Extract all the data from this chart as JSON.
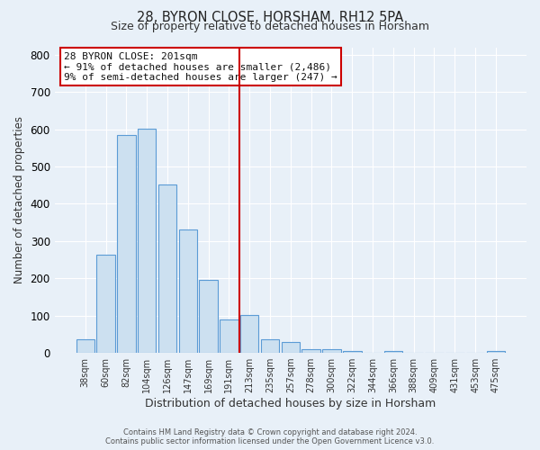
{
  "title": "28, BYRON CLOSE, HORSHAM, RH12 5PA",
  "subtitle": "Size of property relative to detached houses in Horsham",
  "xlabel": "Distribution of detached houses by size in Horsham",
  "ylabel": "Number of detached properties",
  "bar_labels": [
    "38sqm",
    "60sqm",
    "82sqm",
    "104sqm",
    "126sqm",
    "147sqm",
    "169sqm",
    "191sqm",
    "213sqm",
    "235sqm",
    "257sqm",
    "278sqm",
    "300sqm",
    "322sqm",
    "344sqm",
    "366sqm",
    "388sqm",
    "409sqm",
    "431sqm",
    "453sqm",
    "475sqm"
  ],
  "bar_heights": [
    37,
    263,
    585,
    601,
    452,
    330,
    196,
    90,
    101,
    37,
    30,
    10,
    10,
    5,
    0,
    5,
    0,
    0,
    0,
    0,
    5
  ],
  "bar_color": "#cce0f0",
  "bar_edge_color": "#5b9bd5",
  "vline_x": 7.5,
  "vline_color": "#cc0000",
  "ylim": [
    0,
    820
  ],
  "yticks": [
    0,
    100,
    200,
    300,
    400,
    500,
    600,
    700,
    800
  ],
  "annotation_title": "28 BYRON CLOSE: 201sqm",
  "annotation_line1": "← 91% of detached houses are smaller (2,486)",
  "annotation_line2": "9% of semi-detached houses are larger (247) →",
  "annotation_box_color": "#ffffff",
  "annotation_box_edge": "#cc0000",
  "footer1": "Contains HM Land Registry data © Crown copyright and database right 2024.",
  "footer2": "Contains public sector information licensed under the Open Government Licence v3.0.",
  "bg_color": "#e8f0f8",
  "plot_bg_color": "#e8f0f8"
}
